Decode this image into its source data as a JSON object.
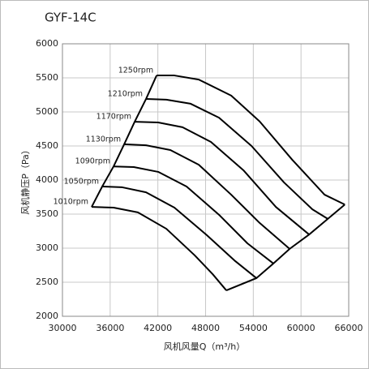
{
  "chart_data": {
    "type": "line",
    "title": "GYF-14C",
    "x_label": "风机风量Q（m³/h）",
    "y_label": "风机静压P（Pa）",
    "xlim": [
      30000,
      66000
    ],
    "xticks": [
      30000,
      36000,
      42000,
      48000,
      54000,
      60000,
      66000
    ],
    "ylim": [
      2000,
      6000
    ],
    "yticks": [
      2000,
      2500,
      3000,
      3500,
      4000,
      4500,
      5000,
      5500,
      6000
    ],
    "grid": true,
    "color": "#000000",
    "series": [
      {
        "name": "1250rpm",
        "x": [
          41840,
          44080,
          47140,
          51220,
          54800,
          58880,
          62960,
          65510
        ],
        "values": [
          5535,
          5535,
          5475,
          5240,
          4860,
          4300,
          3785,
          3640
        ]
      },
      {
        "name": "1210rpm",
        "x": [
          40510,
          43060,
          46120,
          49690,
          53780,
          57860,
          61430,
          63370
        ],
        "values": [
          5190,
          5180,
          5120,
          4915,
          4500,
          3965,
          3570,
          3430
        ]
      },
      {
        "name": "1170rpm",
        "x": [
          39080,
          42040,
          45100,
          48670,
          52750,
          56840,
          61020
        ],
        "values": [
          4855,
          4845,
          4775,
          4560,
          4145,
          3605,
          3200
        ]
      },
      {
        "name": "1130rpm",
        "x": [
          37760,
          40510,
          43570,
          47140,
          51220,
          54800,
          58570
        ],
        "values": [
          4525,
          4510,
          4440,
          4225,
          3785,
          3370,
          2990
        ]
      },
      {
        "name": "1090rpm",
        "x": [
          36430,
          38980,
          42040,
          45610,
          49690,
          53270,
          56530
        ],
        "values": [
          4200,
          4190,
          4120,
          3905,
          3490,
          3070,
          2775
        ]
      },
      {
        "name": "1050rpm",
        "x": [
          35000,
          37450,
          40510,
          44080,
          48160,
          51730,
          54390
        ],
        "values": [
          3905,
          3895,
          3820,
          3595,
          3190,
          2810,
          2560
        ]
      },
      {
        "name": "1010rpm",
        "x": [
          33670,
          36430,
          39490,
          43060,
          46630,
          48880,
          50610
        ],
        "values": [
          3605,
          3595,
          3525,
          3285,
          2895,
          2620,
          2380
        ]
      }
    ]
  }
}
